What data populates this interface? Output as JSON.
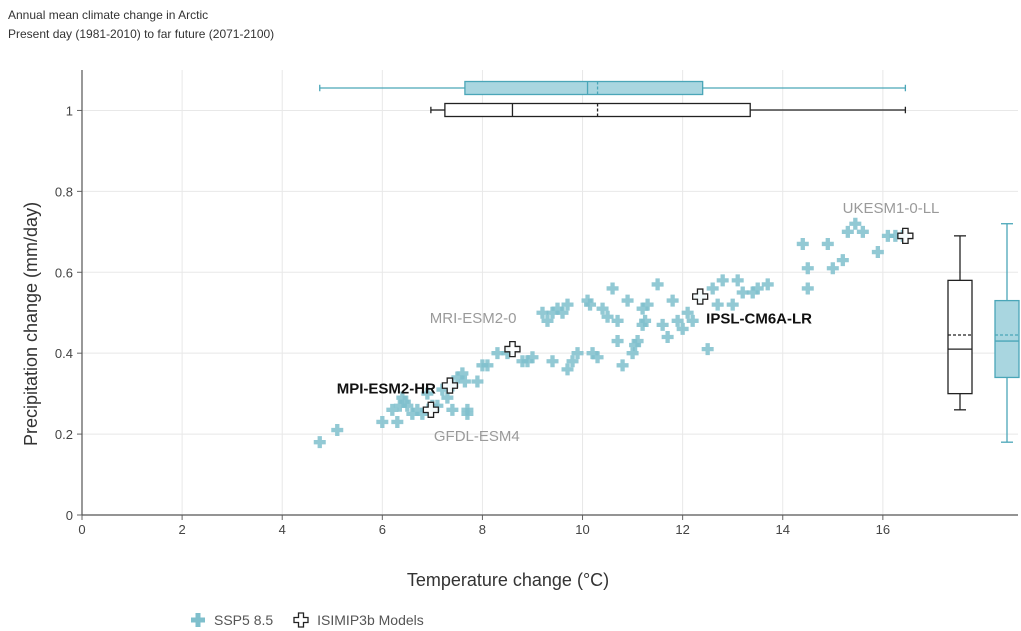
{
  "header": {
    "title": "Annual mean climate change in Arctic",
    "subtitle": "Present day (1981-2010) to far future (2071-2100)"
  },
  "legend": {
    "ssp_label": "SSP5 8.5",
    "isimip_label": "ISIMIP3b Models"
  },
  "colors": {
    "ssp": "#7fbfcc",
    "ssp_box": "#a9d6e0",
    "ssp_stroke": "#4aa6b8",
    "isimip": "#222222",
    "grid": "#e8e8e8"
  },
  "chart_data": {
    "type": "scatter",
    "title": "Annual mean climate change in Arctic",
    "subtitle": "Present day (1981-2010) to far future (2071-2100)",
    "xlabel": "Temperature change (°C)",
    "ylabel": "Precipitation change (mm/day)",
    "xlim": [
      0,
      18.7
    ],
    "ylim": [
      0,
      1.1
    ],
    "xticks": [
      0,
      2,
      4,
      6,
      8,
      10,
      12,
      14,
      16
    ],
    "yticks": [
      0,
      0.2,
      0.4,
      0.6,
      0.8,
      1
    ],
    "grid": true,
    "legend_position": "bottom",
    "series": [
      {
        "name": "SSP5 8.5",
        "marker": "plus-filled",
        "points": [
          [
            4.75,
            0.18
          ],
          [
            5.1,
            0.21
          ],
          [
            6.0,
            0.23
          ],
          [
            6.3,
            0.23
          ],
          [
            6.2,
            0.26
          ],
          [
            6.35,
            0.27
          ],
          [
            6.4,
            0.29
          ],
          [
            6.45,
            0.28
          ],
          [
            6.5,
            0.27
          ],
          [
            6.6,
            0.25
          ],
          [
            6.7,
            0.26
          ],
          [
            6.8,
            0.25
          ],
          [
            6.9,
            0.3
          ],
          [
            7.0,
            0.27
          ],
          [
            7.1,
            0.27
          ],
          [
            7.2,
            0.31
          ],
          [
            7.3,
            0.29
          ],
          [
            7.4,
            0.32
          ],
          [
            7.5,
            0.34
          ],
          [
            7.6,
            0.35
          ],
          [
            7.65,
            0.33
          ],
          [
            7.7,
            0.26
          ],
          [
            7.9,
            0.33
          ],
          [
            8.0,
            0.37
          ],
          [
            8.1,
            0.37
          ],
          [
            8.3,
            0.4
          ],
          [
            8.5,
            0.4
          ],
          [
            8.8,
            0.38
          ],
          [
            7.4,
            0.26
          ],
          [
            7.7,
            0.25
          ],
          [
            8.9,
            0.38
          ],
          [
            9.2,
            0.5
          ],
          [
            9.3,
            0.48
          ],
          [
            9.4,
            0.38
          ],
          [
            9.5,
            0.51
          ],
          [
            9.6,
            0.5
          ],
          [
            9.7,
            0.52
          ],
          [
            9.7,
            0.36
          ],
          [
            9.8,
            0.38
          ],
          [
            9.9,
            0.4
          ],
          [
            10.1,
            0.53
          ],
          [
            10.15,
            0.52
          ],
          [
            10.2,
            0.4
          ],
          [
            10.3,
            0.39
          ],
          [
            10.4,
            0.51
          ],
          [
            10.5,
            0.49
          ],
          [
            10.6,
            0.56
          ],
          [
            10.7,
            0.43
          ],
          [
            10.8,
            0.37
          ],
          [
            10.9,
            0.53
          ],
          [
            11.0,
            0.4
          ],
          [
            11.05,
            0.42
          ],
          [
            11.1,
            0.43
          ],
          [
            11.2,
            0.51
          ],
          [
            11.25,
            0.48
          ],
          [
            11.3,
            0.52
          ],
          [
            11.5,
            0.57
          ],
          [
            11.6,
            0.47
          ],
          [
            11.7,
            0.44
          ],
          [
            9.4,
            0.5
          ],
          [
            9.0,
            0.39
          ],
          [
            11.8,
            0.53
          ],
          [
            11.9,
            0.48
          ],
          [
            12.0,
            0.46
          ],
          [
            12.1,
            0.5
          ],
          [
            12.2,
            0.48
          ],
          [
            12.35,
            0.54
          ],
          [
            12.5,
            0.41
          ],
          [
            12.6,
            0.56
          ],
          [
            12.7,
            0.52
          ],
          [
            12.8,
            0.58
          ],
          [
            13.0,
            0.52
          ],
          [
            13.1,
            0.58
          ],
          [
            13.2,
            0.55
          ],
          [
            13.4,
            0.55
          ],
          [
            13.5,
            0.56
          ],
          [
            13.7,
            0.57
          ],
          [
            14.4,
            0.67
          ],
          [
            14.5,
            0.61
          ],
          [
            14.5,
            0.56
          ],
          [
            14.9,
            0.67
          ],
          [
            15.0,
            0.61
          ],
          [
            15.2,
            0.63
          ],
          [
            15.3,
            0.7
          ],
          [
            15.45,
            0.72
          ],
          [
            15.6,
            0.7
          ],
          [
            15.9,
            0.65
          ],
          [
            16.1,
            0.69
          ],
          [
            16.25,
            0.69
          ],
          [
            16.4,
            0.69
          ],
          [
            10.7,
            0.48
          ],
          [
            11.2,
            0.47
          ]
        ]
      },
      {
        "name": "ISIMIP3b Models",
        "marker": "plus-open",
        "points": [
          {
            "x": 6.97,
            "y": 0.26,
            "label": "GFDL-ESM4"
          },
          {
            "x": 7.35,
            "y": 0.32,
            "label": "MPI-ESM2-HR"
          },
          {
            "x": 8.6,
            "y": 0.41,
            "label": "MRI-ESM2-0"
          },
          {
            "x": 12.35,
            "y": 0.54,
            "label": "IPSL-CM6A-LR"
          },
          {
            "x": 16.45,
            "y": 0.69,
            "label": "UKESM1-0-LL"
          }
        ]
      }
    ],
    "marginal_boxes": {
      "x_ssp": {
        "min": 4.75,
        "q1": 7.65,
        "median": 10.1,
        "mean": 10.3,
        "q3": 12.4,
        "max": 16.45
      },
      "x_isimip": {
        "min": 6.97,
        "q1": 7.25,
        "median": 8.6,
        "mean": 10.3,
        "q3": 13.35,
        "max": 16.45
      },
      "y_isimip": {
        "min": 0.26,
        "q1": 0.3,
        "median": 0.41,
        "mean": 0.445,
        "q3": 0.58,
        "max": 0.69
      },
      "y_ssp": {
        "min": 0.18,
        "q1": 0.34,
        "median": 0.43,
        "mean": 0.445,
        "q3": 0.53,
        "max": 0.72
      }
    }
  }
}
